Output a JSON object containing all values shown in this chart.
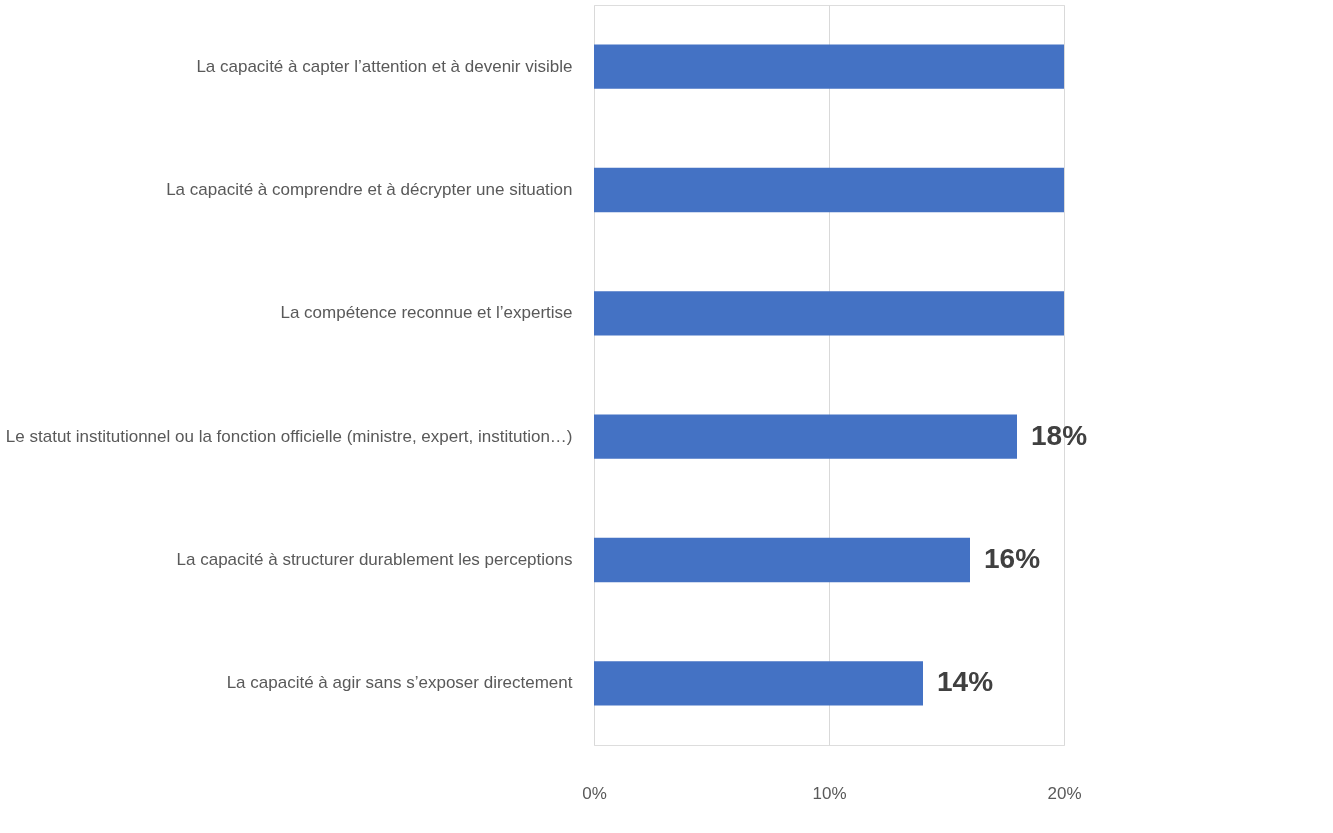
{
  "chart_data": {
    "type": "bar",
    "orientation": "horizontal",
    "categories": [
      "La capacité à capter l’attention et à devenir visible",
      "La capacité à comprendre et à décrypter une situation",
      "La compétence reconnue et l’expertise",
      "Le statut institutionnel ou la fonction officielle (ministre, expert, institution…)",
      "La capacité à structurer durablement les perceptions",
      "La capacité à agir sans s’exposer directement"
    ],
    "values": [
      20,
      20,
      20,
      18,
      16,
      14
    ],
    "value_labels": [
      null,
      null,
      null,
      "18%",
      "16%",
      "14%"
    ],
    "color": "#4472c4",
    "xlim": [
      0,
      20
    ],
    "xticks": [
      {
        "value": 0,
        "label": "0%"
      },
      {
        "value": 10,
        "label": "10%"
      },
      {
        "value": 20,
        "label": "20%"
      }
    ],
    "grid": "x"
  }
}
